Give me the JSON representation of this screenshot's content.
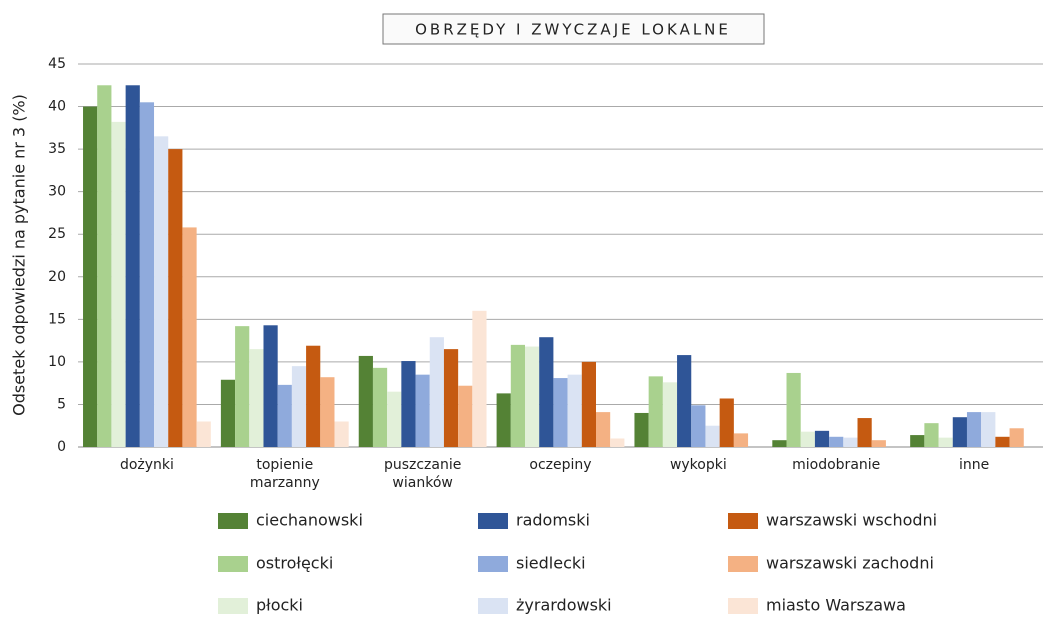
{
  "chart_data": {
    "type": "bar",
    "title": "OBRZĘDY I ZWYCZAJE LOKALNE",
    "y_label": "Odsetek odpowiedzi na pytanie nr 3 (%)",
    "categories": [
      "dożynki",
      "topienie marzanny",
      "puszczanie wianków",
      "oczepiny",
      "wykopki",
      "miodobranie",
      "inne"
    ],
    "series": [
      {
        "name": "ciechanowski",
        "color": "#548235",
        "values": [
          40,
          7.9,
          10.7,
          6.3,
          4,
          0.8,
          1.4
        ]
      },
      {
        "name": "ostrołęcki",
        "color": "#a9d18e",
        "values": [
          42.5,
          14.2,
          9.3,
          12,
          8.3,
          8.7,
          2.8
        ]
      },
      {
        "name": "płocki",
        "color": "#e2f0d9",
        "values": [
          38.2,
          11.5,
          6.5,
          11.8,
          7.6,
          1.8,
          1.1
        ]
      },
      {
        "name": "radomski",
        "color": "#2f5597",
        "values": [
          42.5,
          14.3,
          10.1,
          12.9,
          10.8,
          1.9,
          3.5
        ]
      },
      {
        "name": "siedlecki",
        "color": "#8faadc",
        "values": [
          40.5,
          7.3,
          8.5,
          8.1,
          4.9,
          1.2,
          4.1
        ]
      },
      {
        "name": "żyrardowski",
        "color": "#dae3f3",
        "values": [
          36.5,
          9.5,
          12.9,
          8.5,
          2.5,
          1.1,
          4.1
        ]
      },
      {
        "name": "warszawski wschodni",
        "color": "#c55a11",
        "values": [
          35,
          11.9,
          11.5,
          10,
          5.7,
          3.4,
          1.2
        ]
      },
      {
        "name": "warszawski zachodni",
        "color": "#f4b183",
        "values": [
          25.8,
          8.2,
          7.2,
          4.1,
          1.6,
          0.8,
          2.2
        ]
      },
      {
        "name": "miasto Warszawa",
        "color": "#fbe5d6",
        "values": [
          3,
          3,
          16,
          1,
          0,
          0,
          0
        ]
      }
    ],
    "ylim": [
      0,
      45
    ],
    "yticks": [
      0,
      5,
      10,
      15,
      20,
      25,
      30,
      35,
      40,
      45
    ],
    "grid": true
  }
}
